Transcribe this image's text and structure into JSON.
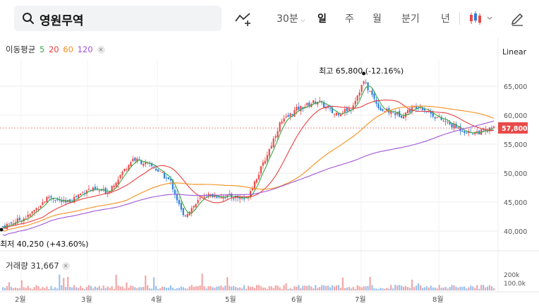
{
  "search": {
    "symbol": "영원무역"
  },
  "toolbar": {
    "interval": "30분",
    "periods": [
      "일",
      "주",
      "월",
      "분기",
      "년"
    ],
    "active_period": "일"
  },
  "indicators": {
    "ma_label": "이동평균",
    "ma": [
      {
        "period": "5",
        "color": "#3aa845"
      },
      {
        "period": "20",
        "color": "#e84040"
      },
      {
        "period": "60",
        "color": "#f5901f"
      },
      {
        "period": "120",
        "color": "#a055d6"
      }
    ]
  },
  "scale": {
    "label": "Linear"
  },
  "colors": {
    "up": "#e84a4a",
    "down": "#2f7fd8",
    "grid": "#eeeeee"
  },
  "chart_data": {
    "type": "candlestick",
    "yticks": [
      "65,000",
      "60,000",
      "55,000",
      "50,000",
      "45,000",
      "40,000"
    ],
    "ylim": [
      38500,
      67500
    ],
    "xticks": [
      "2월",
      "3월",
      "4월",
      "5월",
      "6월",
      "7월",
      "8월"
    ],
    "current_price": "57,800",
    "high_label": "최고 65,800 (-12.16%)",
    "low_label": "최저 40,250 (+43.60%)",
    "volume_label": "거래량 31,667",
    "volume_ticks": [
      "200k",
      "100.0k"
    ]
  }
}
